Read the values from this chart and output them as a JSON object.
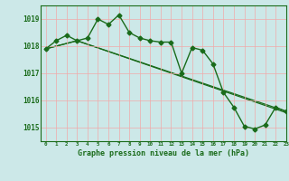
{
  "background_color": "#cce8e8",
  "grid_color": "#f0aaaa",
  "line_color": "#1a6b1a",
  "title": "Graphe pression niveau de la mer (hPa)",
  "xlim": [
    -0.5,
    23
  ],
  "ylim": [
    1014.5,
    1019.5
  ],
  "yticks": [
    1015,
    1016,
    1017,
    1018,
    1019
  ],
  "xtick_labels": [
    "0",
    "1",
    "2",
    "3",
    "4",
    "5",
    "6",
    "7",
    "8",
    "9",
    "10",
    "11",
    "12",
    "13",
    "14",
    "15",
    "16",
    "17",
    "18",
    "19",
    "20",
    "21",
    "22",
    "23"
  ],
  "series_main": {
    "x": [
      0,
      1,
      2,
      3,
      4,
      5,
      6,
      7,
      8,
      9,
      10,
      11,
      12,
      13,
      14,
      15,
      16,
      17,
      18,
      19,
      20,
      21,
      22,
      23
    ],
    "y": [
      1017.9,
      1018.2,
      1018.4,
      1018.2,
      1018.3,
      1019.0,
      1018.8,
      1019.15,
      1018.5,
      1018.3,
      1018.2,
      1018.15,
      1018.15,
      1017.0,
      1017.95,
      1017.85,
      1017.35,
      1016.3,
      1015.75,
      1015.05,
      1014.95,
      1015.1,
      1015.75,
      1015.6
    ]
  },
  "series_line1": {
    "x": [
      0,
      3,
      23
    ],
    "y": [
      1017.9,
      1018.2,
      1015.6
    ]
  },
  "series_line2": {
    "x": [
      0,
      3,
      23
    ],
    "y": [
      1017.9,
      1018.2,
      1015.55
    ]
  }
}
